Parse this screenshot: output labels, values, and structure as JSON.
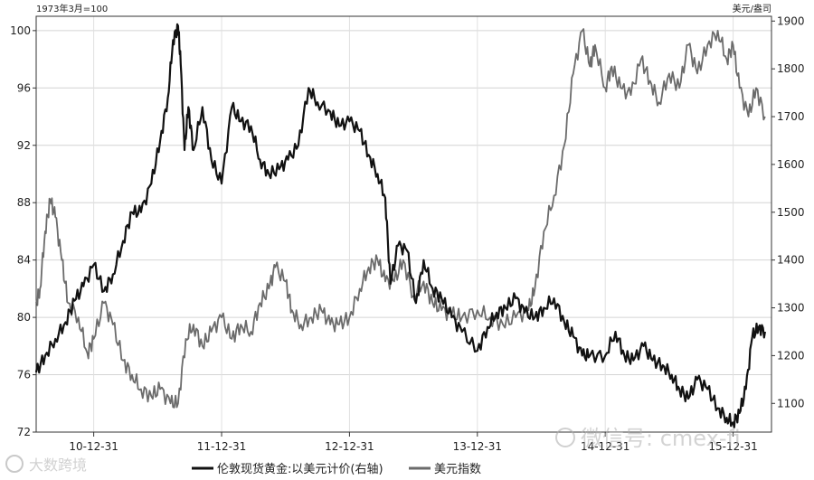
{
  "chart_data": {
    "type": "line",
    "left_axis_unit": "1973年3月=100",
    "right_axis_unit": "美元/盎司",
    "left_axis": {
      "ylim": [
        72,
        101
      ],
      "ticks": [
        "72",
        "76",
        "80",
        "84",
        "88",
        "92",
        "96",
        "100"
      ]
    },
    "right_axis": {
      "ylim": [
        1040,
        1910
      ],
      "ticks": [
        "1100",
        "1200",
        "1300",
        "1400",
        "1500",
        "1600",
        "1700",
        "1800",
        "1900"
      ]
    },
    "x_axis": {
      "xlim": [
        2010.55,
        2016.3
      ],
      "ticks": [
        {
          "label": "10-12-31",
          "x": 2011.0
        },
        {
          "label": "11-12-31",
          "x": 2012.0
        },
        {
          "label": "12-12-31",
          "x": 2013.0
        },
        {
          "label": "13-12-31",
          "x": 2014.0
        },
        {
          "label": "14-12-31",
          "x": 2015.0
        },
        {
          "label": "15-12-31",
          "x": 2016.0
        }
      ]
    },
    "grid": true,
    "legend_position": "bottom",
    "series": [
      {
        "name": "伦敦现货黄金:以美元计价(右轴)",
        "axis": "right",
        "color": "#111111",
        "x": [
          2010.55,
          2010.62,
          2010.7,
          2010.78,
          2010.85,
          2010.92,
          2011.0,
          2011.08,
          2011.15,
          2011.23,
          2011.3,
          2011.37,
          2011.45,
          2011.52,
          2011.58,
          2011.62,
          2011.66,
          2011.68,
          2011.71,
          2011.74,
          2011.78,
          2011.85,
          2011.92,
          2012.0,
          2012.08,
          2012.15,
          2012.23,
          2012.3,
          2012.37,
          2012.45,
          2012.52,
          2012.6,
          2012.68,
          2012.75,
          2012.85,
          2012.92,
          2013.0,
          2013.08,
          2013.15,
          2013.22,
          2013.28,
          2013.32,
          2013.38,
          2013.45,
          2013.52,
          2013.58,
          2013.65,
          2013.72,
          2013.8,
          2013.88,
          2014.0,
          2014.08,
          2014.15,
          2014.22,
          2014.3,
          2014.37,
          2014.45,
          2014.52,
          2014.6,
          2014.68,
          2014.75,
          2014.82,
          2014.88,
          2015.0,
          2015.08,
          2015.15,
          2015.22,
          2015.3,
          2015.37,
          2015.45,
          2015.52,
          2015.58,
          2015.65,
          2015.72,
          2015.8,
          2015.88,
          2015.95,
          2016.0,
          2016.05,
          2016.1,
          2016.15,
          2016.2,
          2016.25
        ],
        "values": [
          1165,
          1200,
          1235,
          1270,
          1315,
          1345,
          1390,
          1335,
          1370,
          1440,
          1500,
          1500,
          1560,
          1650,
          1740,
          1860,
          1890,
          1810,
          1630,
          1720,
          1630,
          1720,
          1610,
          1560,
          1720,
          1690,
          1680,
          1610,
          1580,
          1590,
          1610,
          1640,
          1760,
          1730,
          1710,
          1680,
          1690,
          1670,
          1620,
          1580,
          1530,
          1350,
          1430,
          1420,
          1310,
          1400,
          1340,
          1320,
          1280,
          1250,
          1210,
          1260,
          1290,
          1300,
          1320,
          1290,
          1280,
          1300,
          1320,
          1270,
          1240,
          1200,
          1200,
          1200,
          1250,
          1200,
          1190,
          1220,
          1190,
          1180,
          1160,
          1130,
          1110,
          1150,
          1130,
          1090,
          1070,
          1060,
          1080,
          1130,
          1240,
          1260,
          1250
        ]
      },
      {
        "name": "美元指数",
        "axis": "left",
        "color": "#6b6b6b",
        "x": [
          2010.55,
          2010.58,
          2010.62,
          2010.66,
          2010.7,
          2010.75,
          2010.8,
          2010.88,
          2010.95,
          2011.0,
          2011.08,
          2011.15,
          2011.23,
          2011.3,
          2011.37,
          2011.45,
          2011.52,
          2011.6,
          2011.66,
          2011.72,
          2011.78,
          2011.85,
          2011.92,
          2012.0,
          2012.08,
          2012.15,
          2012.23,
          2012.3,
          2012.37,
          2012.42,
          2012.5,
          2012.55,
          2012.62,
          2012.7,
          2012.78,
          2012.85,
          2012.92,
          2013.0,
          2013.08,
          2013.15,
          2013.22,
          2013.28,
          2013.35,
          2013.42,
          2013.5,
          2013.58,
          2013.65,
          2013.72,
          2013.8,
          2013.88,
          2014.0,
          2014.1,
          2014.2,
          2014.3,
          2014.4,
          2014.45,
          2014.52,
          2014.6,
          2014.68,
          2014.75,
          2014.82,
          2014.88,
          2014.92,
          2015.0,
          2015.05,
          2015.12,
          2015.2,
          2015.28,
          2015.35,
          2015.42,
          2015.5,
          2015.58,
          2015.65,
          2015.72,
          2015.8,
          2015.88,
          2015.95,
          2016.0,
          2016.05,
          2016.12,
          2016.18,
          2016.25
        ],
        "values": [
          81,
          82,
          86,
          88.2,
          87,
          84,
          81,
          80,
          77.5,
          78.5,
          81,
          79.5,
          77,
          76,
          75,
          74.5,
          75,
          74,
          74,
          78.5,
          79.5,
          78,
          79,
          80,
          78.5,
          79.5,
          79,
          81,
          82,
          83.5,
          82.5,
          80.5,
          79.5,
          80,
          80.5,
          79.5,
          79.5,
          80,
          82,
          83.5,
          84,
          82.5,
          82.5,
          84,
          81.5,
          82.5,
          81,
          80.5,
          80.2,
          80,
          80.5,
          80,
          79.5,
          80,
          80.5,
          82,
          86,
          88.5,
          92,
          97,
          100,
          97.5,
          99,
          96,
          97.5,
          96,
          95.5,
          98,
          96.5,
          95,
          97,
          96,
          99,
          97,
          99,
          100,
          98,
          99,
          96,
          94,
          96,
          94
        ]
      }
    ],
    "watermarks": [
      "大数跨境",
      "微信号: cmex-fi"
    ]
  }
}
